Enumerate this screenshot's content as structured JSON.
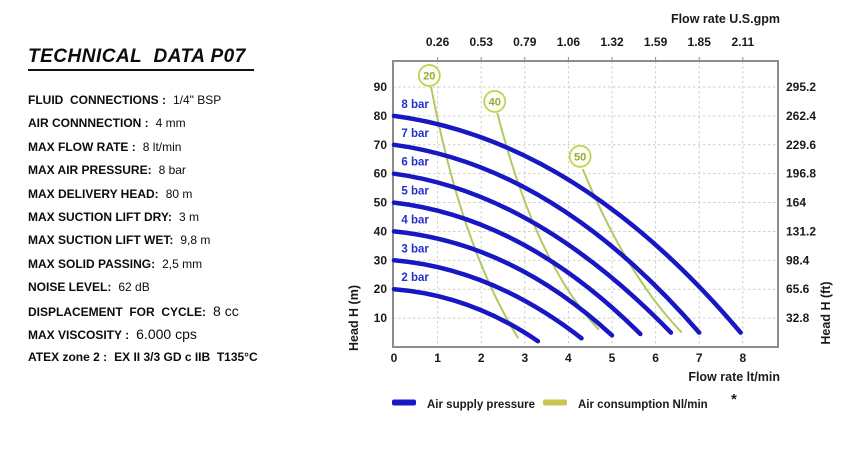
{
  "panel": {
    "title": "TECHNICAL  DATA P07",
    "rows": [
      {
        "label": "FLUID  CONNECTIONS :",
        "value": "1/4\" BSP"
      },
      {
        "label": "AIR CONNNECTION :",
        "value": "4 mm"
      },
      {
        "label": "MAX FLOW RATE :",
        "value": "8 lt/min"
      },
      {
        "label": "MAX AIR PRESSURE:",
        "value": "8 bar"
      },
      {
        "label": "MAX DELIVERY HEAD:",
        "value": "80 m"
      },
      {
        "label": "MAX SUCTION LIFT DRY:",
        "value": "3 m"
      },
      {
        "label": "MAX SUCTION LIFT WET:",
        "value": "9,8 m"
      },
      {
        "label": "MAX SOLID PASSING:",
        "value": "2,5 mm"
      },
      {
        "label": "NOISE LEVEL:",
        "value": "62 dB"
      },
      {
        "label": "DISPLACEMENT  FOR  CYCLE:",
        "value": "8 cc"
      },
      {
        "label": "MAX VISCOSITY :",
        "value": "6.000 cps"
      },
      {
        "label": "ATEX zone 2 :",
        "value": "EX II 3/3 GD c IIB  T135°C"
      }
    ]
  },
  "chart_data": {
    "type": "line",
    "grid": true,
    "xlim": [
      0,
      8.8
    ],
    "ylim": [
      0,
      99
    ],
    "x_axis_bottom": {
      "label": "Flow rate  lt/min",
      "ticks": [
        "0",
        "1",
        "2",
        "3",
        "4",
        "5",
        "6",
        "7",
        "8"
      ]
    },
    "x_axis_top": {
      "label": "Flow rate U.S.gpm",
      "ticks": [
        "0.26",
        "0.53",
        "0.79",
        "1.06",
        "1.32",
        "1.59",
        "1.85",
        "2.11"
      ]
    },
    "y_axis_left": {
      "label": "Head H (m)",
      "ticks": [
        "10",
        "20",
        "30",
        "40",
        "50",
        "60",
        "70",
        "80",
        "90"
      ]
    },
    "y_axis_right": {
      "label": "Head H (ft)",
      "ticks": [
        "32.8",
        "65.6",
        "98.4",
        "131.2",
        "164",
        "196.8",
        "229.6",
        "262.4",
        "295.2"
      ]
    },
    "series": [
      {
        "name": "2 bar",
        "pressure_bar": 2,
        "points": [
          [
            0,
            20
          ],
          [
            1.7,
            14.5
          ],
          [
            3.3,
            2
          ]
        ]
      },
      {
        "name": "3 bar",
        "pressure_bar": 3,
        "points": [
          [
            0,
            30
          ],
          [
            2.2,
            21.8
          ],
          [
            4.3,
            3
          ]
        ]
      },
      {
        "name": "4 bar",
        "pressure_bar": 4,
        "points": [
          [
            0,
            40
          ],
          [
            2.6,
            29
          ],
          [
            5.0,
            4
          ]
        ]
      },
      {
        "name": "5 bar",
        "pressure_bar": 5,
        "points": [
          [
            0,
            50
          ],
          [
            2.9,
            36
          ],
          [
            5.65,
            4.5
          ]
        ]
      },
      {
        "name": "6 bar",
        "pressure_bar": 6,
        "points": [
          [
            0,
            60
          ],
          [
            3.2,
            43
          ],
          [
            6.35,
            5
          ]
        ]
      },
      {
        "name": "7 bar",
        "pressure_bar": 7,
        "points": [
          [
            0,
            70
          ],
          [
            3.6,
            50
          ],
          [
            7.0,
            5
          ]
        ]
      },
      {
        "name": "8 bar",
        "pressure_bar": 8,
        "points": [
          [
            0,
            80
          ],
          [
            4.1,
            57
          ],
          [
            7.95,
            5
          ]
        ]
      }
    ],
    "air_consumption_lines": [
      {
        "name": "20",
        "circle_at": [
          0.81,
          94
        ],
        "points": [
          [
            0.85,
            90
          ],
          [
            1.7,
            40.5
          ],
          [
            2.85,
            3
          ]
        ]
      },
      {
        "name": "40",
        "circle_at": [
          2.31,
          85
        ],
        "points": [
          [
            2.37,
            81
          ],
          [
            3.4,
            36
          ],
          [
            4.7,
            6
          ]
        ]
      },
      {
        "name": "50",
        "circle_at": [
          4.27,
          66
        ],
        "points": [
          [
            4.33,
            61.5
          ],
          [
            5.4,
            29
          ],
          [
            6.6,
            5
          ]
        ]
      }
    ],
    "legend": [
      {
        "label": "Air supply pressure",
        "color": "#1717C3"
      },
      {
        "label": "Air consumption  Nl/min",
        "color": "#C6C64F"
      }
    ],
    "footnote": "*",
    "colors": {
      "curve_blue": "#1717C3",
      "curve_label_blue": "#2330C8",
      "air_green": "#B3C85F",
      "circle_stroke": "#C2D352",
      "circle_fill": "#FCFDF4",
      "circle_text": "#8FAE3C",
      "grid": "#CBD1C6",
      "frame": "#8C8C8C",
      "tick_text": "#1A1A1A"
    }
  }
}
